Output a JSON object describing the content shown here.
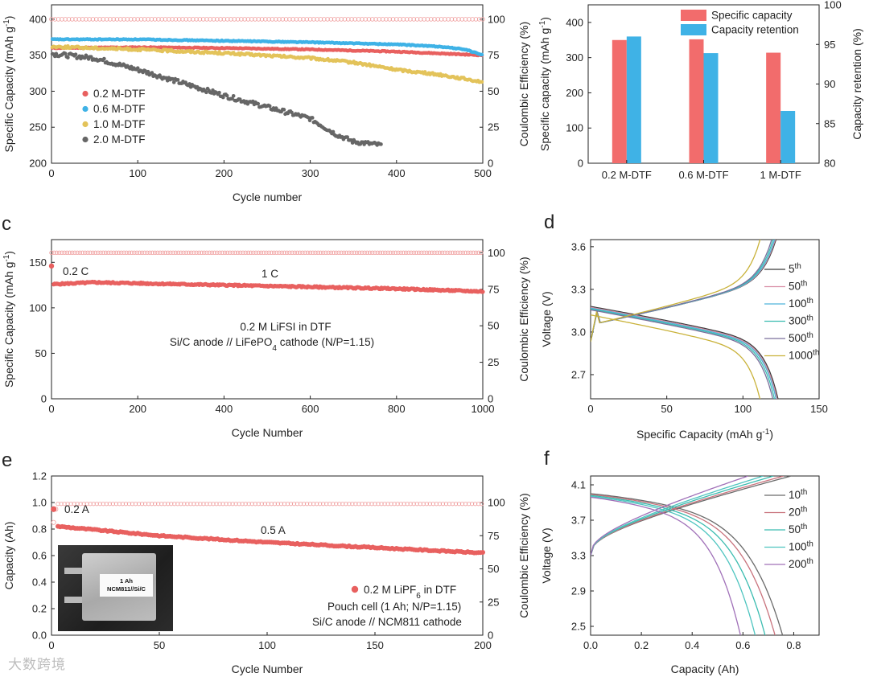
{
  "chart_data": [
    {
      "id": "a",
      "type": "scatter",
      "xlabel": "Cycle number",
      "ylabel": "Specific Capacity (mAh g-1)",
      "y2label": "Coulombic Efficiency (%)",
      "xlim": [
        0,
        500
      ],
      "ylim": [
        200,
        420
      ],
      "y2lim": [
        0,
        110
      ],
      "xticks": [
        "0",
        "100",
        "200",
        "300",
        "400",
        "500"
      ],
      "yticks": [
        "200",
        "250",
        "300",
        "350",
        "400"
      ],
      "y2ticks": [
        "0",
        "25",
        "50",
        "75",
        "100"
      ],
      "ce_percent": 100,
      "legend_position": "center-left",
      "series": [
        {
          "name": "0.2 M-DTF",
          "color": "#e8605f",
          "x": [
            0,
            100,
            200,
            300,
            400,
            500
          ],
          "y": [
            360,
            361,
            360,
            358,
            355,
            350
          ]
        },
        {
          "name": "0.6 M-DTF",
          "color": "#3fb2e6",
          "x": [
            0,
            100,
            200,
            300,
            400,
            450,
            480,
            500
          ],
          "y": [
            372,
            372,
            370,
            368,
            365,
            362,
            358,
            350
          ]
        },
        {
          "name": "1.0 M-DTF",
          "color": "#e3c35a",
          "x": [
            0,
            100,
            200,
            300,
            350,
            400,
            450,
            500
          ],
          "y": [
            362,
            358,
            353,
            346,
            340,
            330,
            323,
            313
          ]
        },
        {
          "name": "2.0 M-DTF",
          "color": "#666666",
          "x": [
            0,
            50,
            100,
            150,
            200,
            250,
            300,
            330,
            350,
            383
          ],
          "y": [
            352,
            346,
            330,
            312,
            294,
            278,
            262,
            240,
            230,
            225
          ]
        }
      ]
    },
    {
      "id": "b",
      "type": "bar",
      "ylabel": "Specific capacity (mAh g-1)",
      "y2label": "Capacity retention",
      "categories": [
        "0.2 M-DTF",
        "0.6 M-DTF",
        "1 M-DTF"
      ],
      "ylim": [
        0,
        450
      ],
      "y2lim": [
        80,
        100
      ],
      "yticks": [
        "0",
        "100",
        "200",
        "300",
        "400"
      ],
      "y2ticks": [
        "80",
        "85",
        "90",
        "95",
        "100"
      ],
      "legend_position": "top-right",
      "series": [
        {
          "name": "Specific capacity",
          "color": "#f26c6c",
          "axis": "left",
          "values": [
            350,
            352,
            314
          ]
        },
        {
          "name": "Capacity retention",
          "color": "#3fb2e6",
          "axis": "right",
          "values": [
            96,
            93.9,
            86.6
          ]
        }
      ]
    },
    {
      "id": "c",
      "type": "scatter",
      "xlabel": "Cycle Number",
      "ylabel": "Specific Capacity (mAh g-1)",
      "y2label": "Coulombic Efficiency (%)",
      "xlim": [
        0,
        1000
      ],
      "ylim": [
        0,
        175
      ],
      "y2lim": [
        0,
        109
      ],
      "xticks": [
        "0",
        "200",
        "400",
        "600",
        "800",
        "1000"
      ],
      "yticks": [
        "0",
        "50",
        "100",
        "150"
      ],
      "y2ticks": [
        "0",
        "25",
        "50",
        "75",
        "100"
      ],
      "ce_percent": 100,
      "color": "#e8605f",
      "capacity": {
        "x": [
          0,
          5,
          100,
          200,
          400,
          600,
          800,
          1000
        ],
        "y": [
          146,
          126,
          128,
          127,
          125,
          123,
          121,
          118
        ]
      },
      "annotations": {
        "rate1": "0.2 C",
        "rate2": "1 C",
        "line1": "0.2 M LiFSI in DTF",
        "line2": "Si/C anode // LiFePO4 cathode (N/P=1.15)"
      }
    },
    {
      "id": "d",
      "type": "line",
      "xlabel": "Specific Capacity (mAh g-1)",
      "ylabel": "Voltage (V)",
      "xlim": [
        0,
        150
      ],
      "ylim": [
        2.53,
        3.65
      ],
      "xticks": [
        "0",
        "50",
        "100",
        "150"
      ],
      "yticks": [
        "2.7",
        "3.0",
        "3.3",
        "3.6"
      ],
      "legend_position": "right",
      "series": [
        {
          "name": "5th",
          "color": "#3a3a3a",
          "qmax": 128
        },
        {
          "name": "50th",
          "color": "#d98fa6",
          "qmax": 127.5
        },
        {
          "name": "100th",
          "color": "#4fb3d9",
          "qmax": 127
        },
        {
          "name": "300th",
          "color": "#3bbcb0",
          "qmax": 126
        },
        {
          "name": "500th",
          "color": "#7a6f9c",
          "qmax": 125
        },
        {
          "name": "1000th",
          "color": "#c9b23a",
          "qmax": 117
        }
      ]
    },
    {
      "id": "e",
      "type": "scatter",
      "xlabel": "Cycle Number",
      "ylabel": "Capacity (Ah)",
      "y2label": "Coulombic Efficiency (%)",
      "xlim": [
        0,
        200
      ],
      "ylim": [
        0,
        1.2
      ],
      "y2lim": [
        0,
        120
      ],
      "xticks": [
        "0",
        "50",
        "100",
        "150",
        "200"
      ],
      "yticks": [
        "0.0",
        "0.2",
        "0.4",
        "0.6",
        "0.8",
        "1.0",
        "1.2"
      ],
      "y2ticks": [
        "0",
        "25",
        "50",
        "75",
        "100"
      ],
      "ce_percent": 99,
      "color": "#e8605f",
      "capacity": {
        "x": [
          1,
          3,
          50,
          100,
          150,
          200
        ],
        "y": [
          0.95,
          0.82,
          0.75,
          0.7,
          0.66,
          0.62
        ]
      },
      "annotations": {
        "rate1": "0.2 A",
        "rate2": "0.5 A",
        "legend": "0.2 M LiPF6 in DTF",
        "line1": "Pouch cell (1 Ah; N/P=1.15)",
        "line2": "Si/C anode // NCM811 cathode"
      },
      "photo_label": [
        "1 Ah",
        "NCM811//Si/C"
      ]
    },
    {
      "id": "f",
      "type": "line",
      "xlabel": "Capacity (Ah)",
      "ylabel": "Voltage (V)",
      "xlim": [
        0,
        0.9
      ],
      "ylim": [
        2.4,
        4.2
      ],
      "xticks": [
        "0.0",
        "0.2",
        "0.4",
        "0.6",
        "0.8"
      ],
      "yticks": [
        "2.5",
        "2.9",
        "3.3",
        "3.7",
        "4.1"
      ],
      "legend_position": "right",
      "series": [
        {
          "name": "10th",
          "color": "#6b6b6b",
          "qmax": 0.79
        },
        {
          "name": "20th",
          "color": "#c9737d",
          "qmax": 0.76
        },
        {
          "name": "50th",
          "color": "#3bbcb0",
          "qmax": 0.72
        },
        {
          "name": "100th",
          "color": "#4fc5c0",
          "qmax": 0.68
        },
        {
          "name": "200th",
          "color": "#a070b8",
          "qmax": 0.62
        }
      ]
    }
  ],
  "panel_letters": [
    "c",
    "d",
    "e",
    "f"
  ],
  "watermark": "大数跨境"
}
